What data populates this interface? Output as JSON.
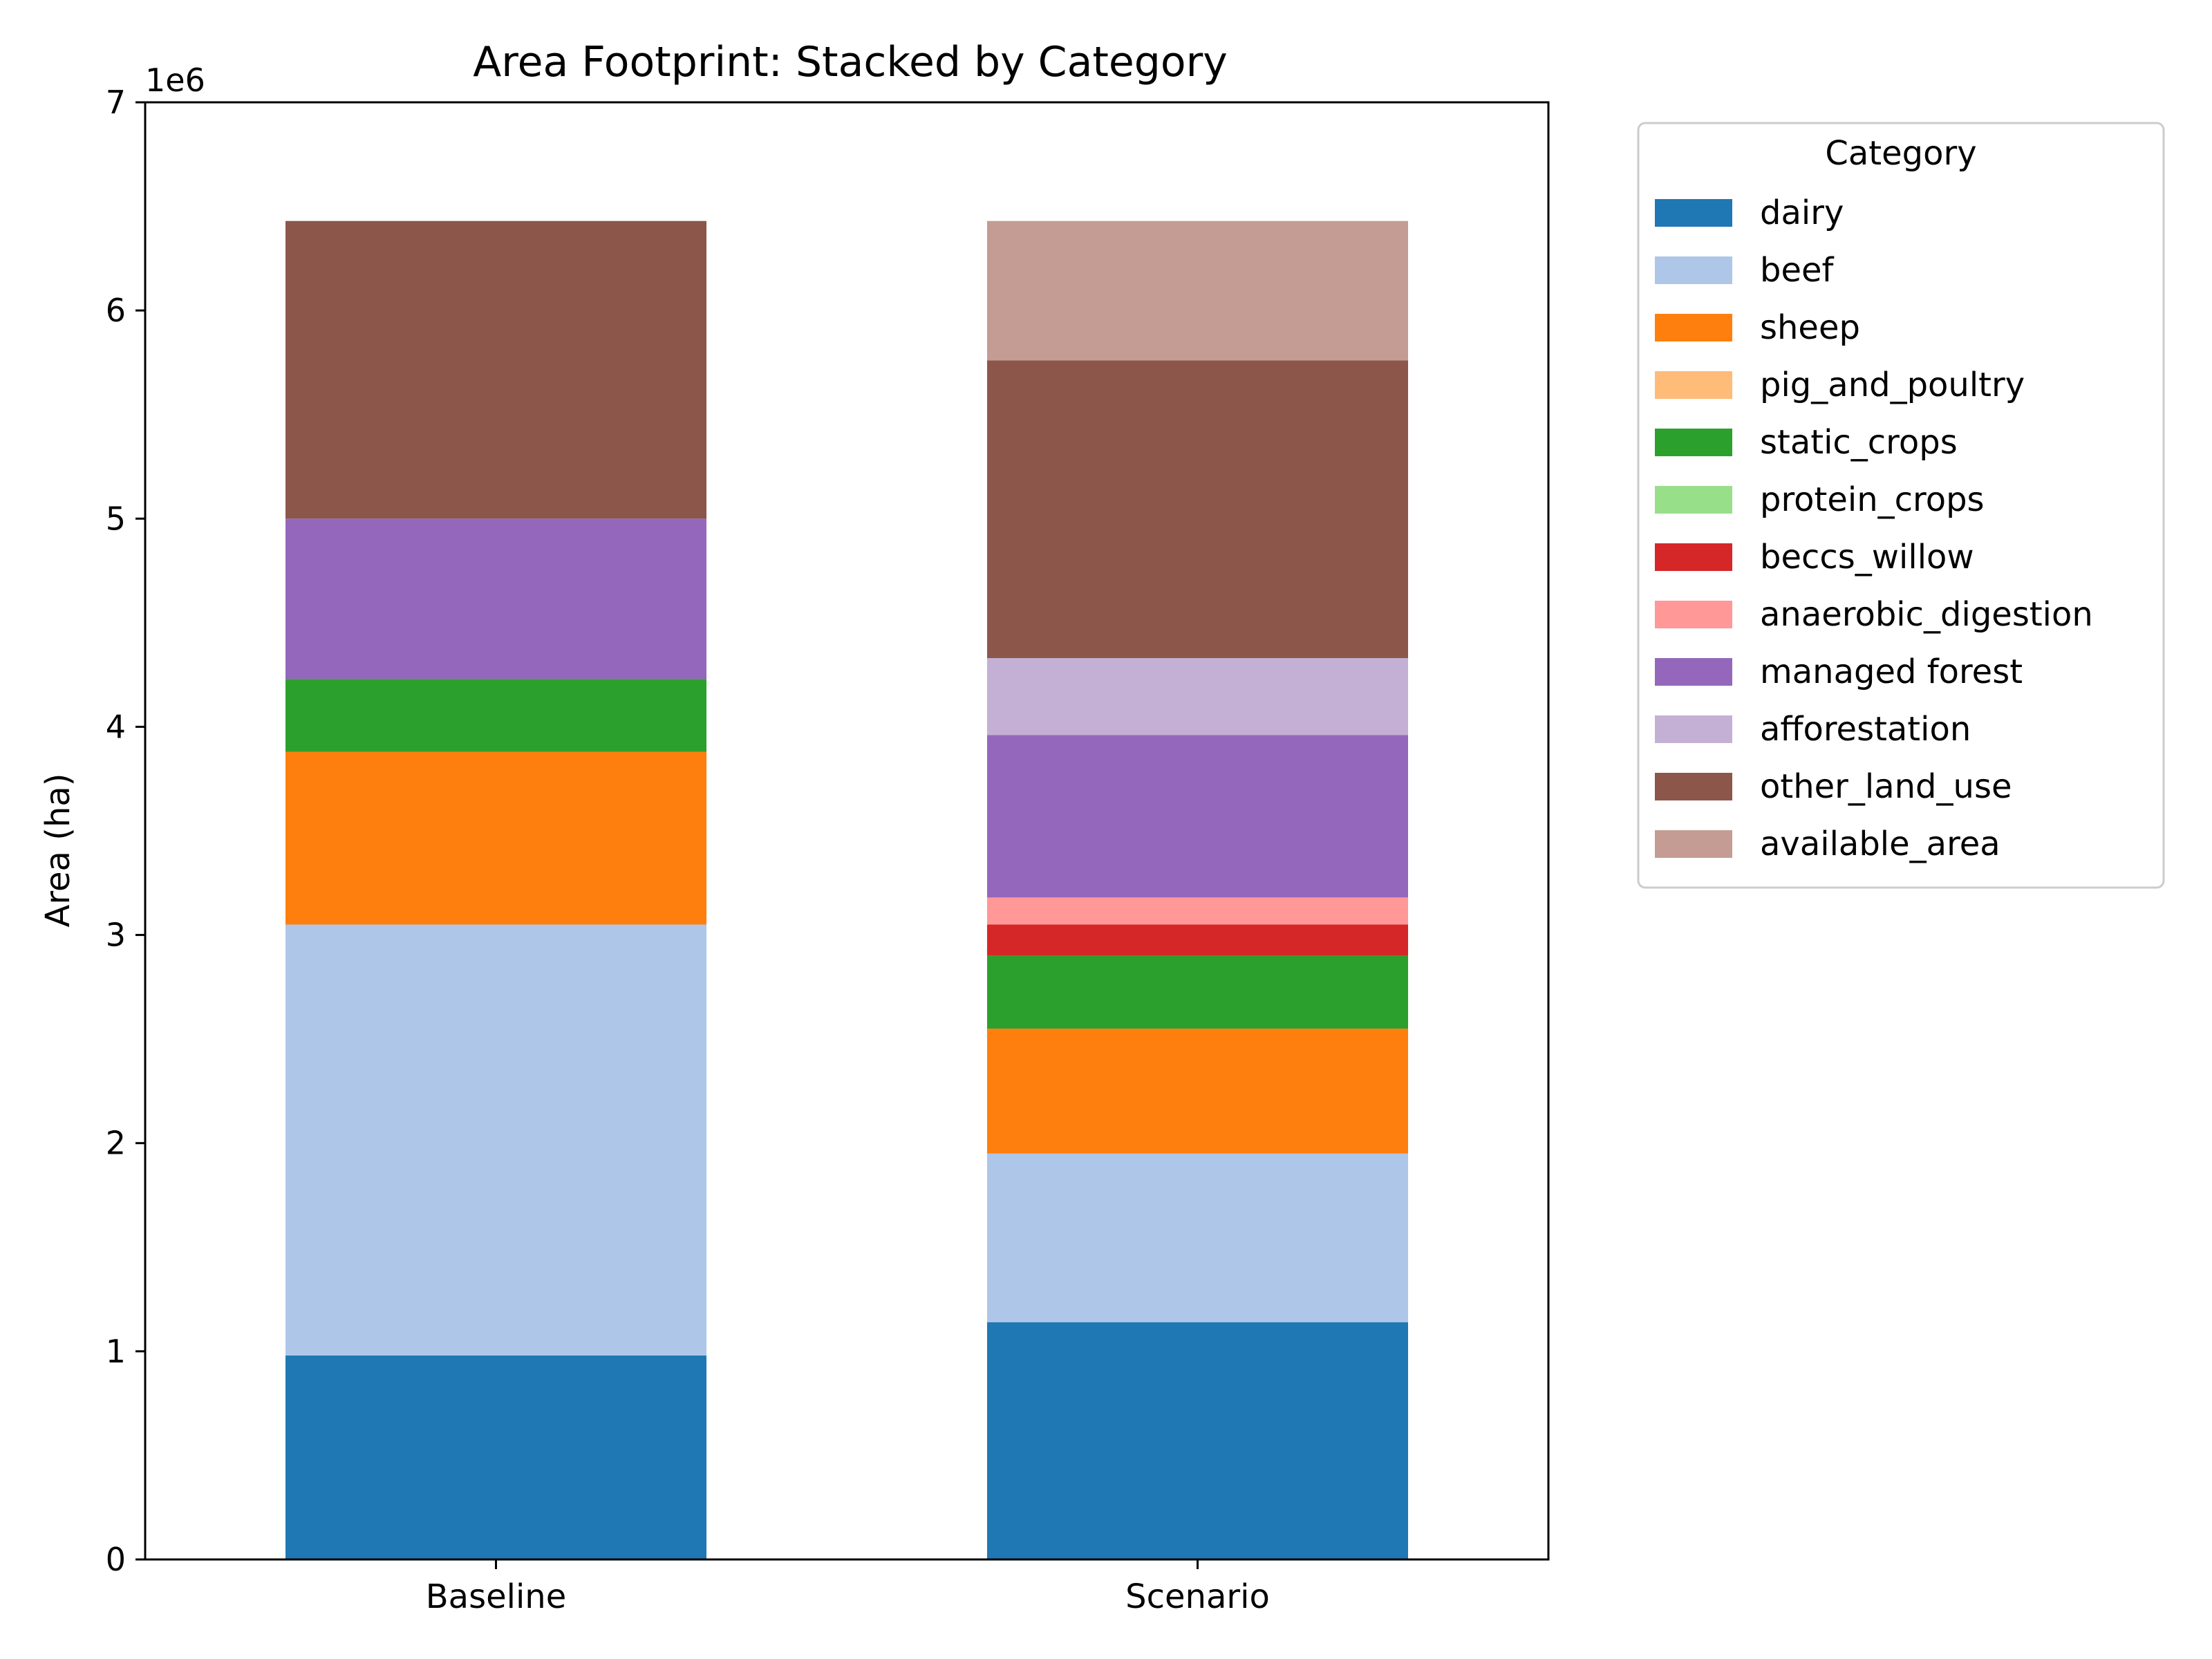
{
  "chart_data": {
    "type": "bar",
    "stacked": true,
    "title": "Area Footprint: Stacked by Category",
    "xlabel": "",
    "ylabel": "Area (ha)",
    "y_offset_label": "1e6",
    "ylim": [
      0,
      7000000
    ],
    "yticks": [
      0,
      1000000,
      2000000,
      3000000,
      4000000,
      5000000,
      6000000,
      7000000
    ],
    "ytick_labels": [
      "0",
      "1",
      "2",
      "3",
      "4",
      "5",
      "6",
      "7"
    ],
    "categories": [
      "Baseline",
      "Scenario"
    ],
    "grid": false,
    "legend": {
      "title": "Category",
      "placement": "outside-right-top"
    },
    "series": [
      {
        "name": "dairy",
        "color": "#1f77b4",
        "values": [
          980000,
          1140000
        ]
      },
      {
        "name": "beef",
        "color": "#aec7e8",
        "values": [
          2070000,
          810000
        ]
      },
      {
        "name": "sheep",
        "color": "#ff7f0e",
        "values": [
          830000,
          600000
        ]
      },
      {
        "name": "pig_and_poultry",
        "color": "#ffbb78",
        "values": [
          0,
          0
        ]
      },
      {
        "name": "static_crops",
        "color": "#2ca02c",
        "values": [
          350000,
          350000
        ]
      },
      {
        "name": "protein_crops",
        "color": "#98df8a",
        "values": [
          0,
          0
        ]
      },
      {
        "name": "beccs_willow",
        "color": "#d62728",
        "values": [
          0,
          150000
        ]
      },
      {
        "name": "anaerobic_digestion",
        "color": "#ff9896",
        "values": [
          0,
          130000
        ]
      },
      {
        "name": "managed forest",
        "color": "#9467bd",
        "values": [
          770000,
          780000
        ]
      },
      {
        "name": "afforestation",
        "color": "#c5b0d5",
        "values": [
          0,
          370000
        ]
      },
      {
        "name": "other_land_use",
        "color": "#8c564b",
        "values": [
          1430000,
          1430000
        ]
      },
      {
        "name": "available_area",
        "color": "#c49c94",
        "values": [
          0,
          670000
        ]
      }
    ]
  }
}
